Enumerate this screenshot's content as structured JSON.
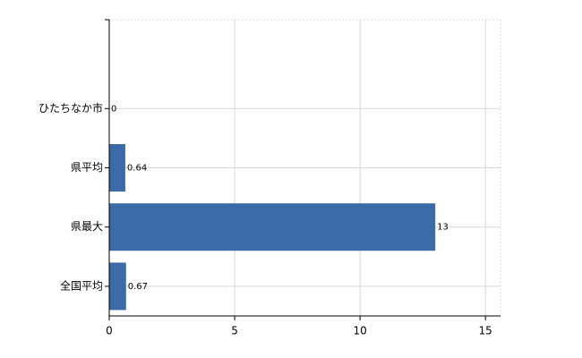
{
  "chart_data": {
    "type": "bar",
    "orientation": "horizontal",
    "categories": [
      null,
      "ひたちなか市",
      "県平均",
      "県最大",
      "全国平均"
    ],
    "values": [
      null,
      0,
      0.64,
      13,
      0.67
    ],
    "color": "#3a6aa8",
    "xlim": [
      0,
      15.6
    ],
    "xticks": [
      0,
      5,
      10,
      15
    ],
    "grid": true
  }
}
